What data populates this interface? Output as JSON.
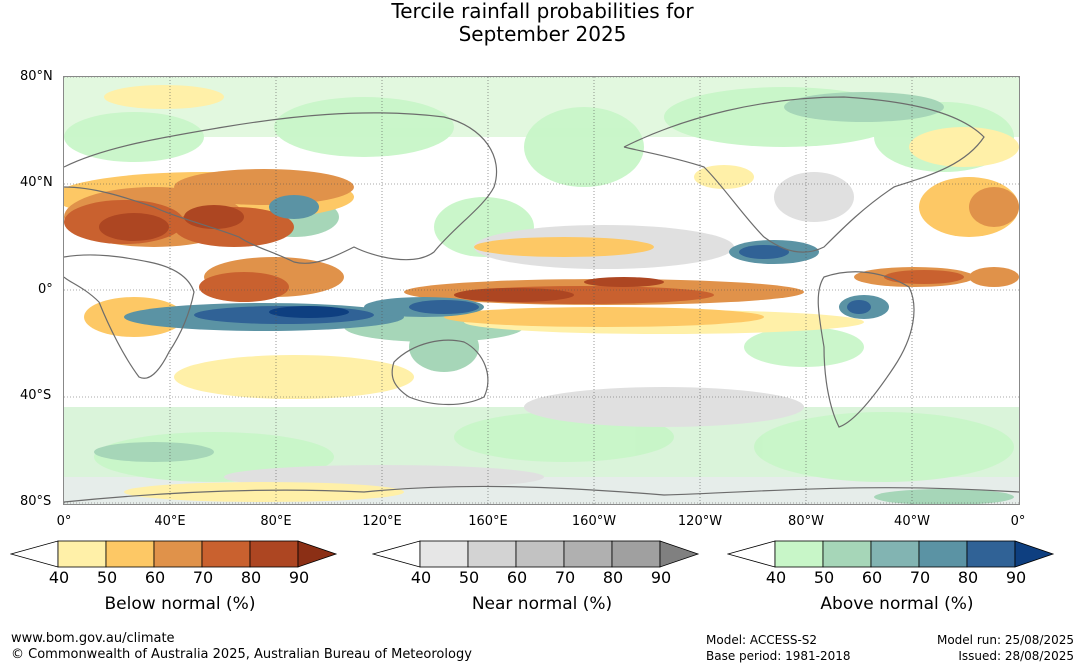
{
  "title_line1": "Tercile rainfall probabilities for",
  "title_line2": "September 2025",
  "lat_labels": [
    "80°N",
    "40°N",
    "0°",
    "40°S",
    "80°S"
  ],
  "lon_labels": [
    "0°",
    "40°E",
    "80°E",
    "120°E",
    "160°E",
    "160°W",
    "120°W",
    "80°W",
    "40°W",
    "0°"
  ],
  "colorbars": [
    {
      "title": "Below normal (%)",
      "ticks": [
        "40",
        "50",
        "60",
        "70",
        "80",
        "90"
      ],
      "colors": [
        "#ffffff",
        "#fff0a8",
        "#fdc865",
        "#e0924a",
        "#c9612f",
        "#ad4622",
        "#8b2f15"
      ]
    },
    {
      "title": "Near normal (%)",
      "ticks": [
        "40",
        "50",
        "60",
        "70",
        "80",
        "90"
      ],
      "colors": [
        "#ffffff",
        "#e6e6e6",
        "#d3d3d3",
        "#c2c2c2",
        "#b0b0b0",
        "#a0a0a0",
        "#808080"
      ]
    },
    {
      "title": "Above normal (%)",
      "ticks": [
        "40",
        "50",
        "60",
        "70",
        "80",
        "90"
      ],
      "colors": [
        "#ffffff",
        "#c8f6c8",
        "#a6d6b8",
        "#82b4b2",
        "#5b93a4",
        "#306296",
        "#0e3f80"
      ]
    }
  ],
  "footer": {
    "url": "www.bom.gov.au/climate",
    "copyright": "© Commonwealth of Australia 2025, Australian Bureau of Meteorology",
    "model": "Model: ACCESS-S2",
    "base_period": "Base period: 1981-2018",
    "model_run": "Model run: 25/08/2025",
    "issued": "Issued: 28/08/2025"
  }
}
